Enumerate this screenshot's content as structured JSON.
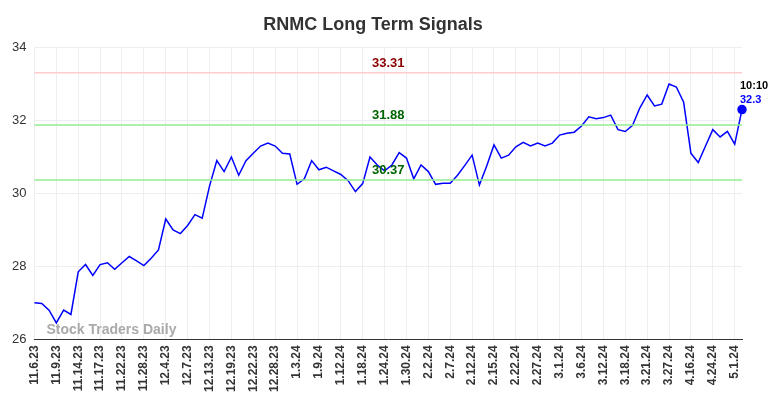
{
  "chart_data": {
    "type": "line",
    "title": "RNMC Long Term Signals",
    "categories": [
      "11.6.23",
      null,
      null,
      "11.9.23",
      null,
      null,
      "11.14.23",
      null,
      null,
      "11.17.23",
      null,
      null,
      "11.22.23",
      null,
      null,
      "11.28.23",
      null,
      null,
      "12.4.23",
      null,
      null,
      "12.7.23",
      null,
      null,
      "12.13.23",
      null,
      null,
      "12.19.23",
      null,
      null,
      "12.22.23",
      null,
      null,
      "12.28.23",
      null,
      null,
      "1.3.24",
      null,
      null,
      "1.9.24",
      null,
      null,
      "1.12.24",
      null,
      null,
      "1.18.24",
      null,
      null,
      "1.24.24",
      null,
      null,
      "1.30.24",
      null,
      null,
      "2.2.24",
      null,
      null,
      "2.7.24",
      null,
      null,
      "2.12.24",
      null,
      null,
      "2.15.24",
      null,
      null,
      "2.22.24",
      null,
      null,
      "2.27.24",
      null,
      null,
      "3.1.24",
      null,
      null,
      "3.6.24",
      null,
      null,
      "3.12.24",
      null,
      null,
      "3.18.24",
      null,
      null,
      "3.21.24",
      null,
      null,
      "3.27.24",
      null,
      null,
      "4.16.24",
      null,
      null,
      "4.24.24",
      null,
      null,
      "5.1.24",
      null
    ],
    "values": [
      27.0,
      26.98,
      26.8,
      26.45,
      26.8,
      26.68,
      27.85,
      28.05,
      27.75,
      28.05,
      28.1,
      27.92,
      28.1,
      28.27,
      28.15,
      28.02,
      28.22,
      28.45,
      29.3,
      29.0,
      28.9,
      29.12,
      29.42,
      29.32,
      30.2,
      30.9,
      30.6,
      31.0,
      30.5,
      30.9,
      31.1,
      31.3,
      31.38,
      31.3,
      31.1,
      31.08,
      30.25,
      30.4,
      30.9,
      30.65,
      30.72,
      30.62,
      30.52,
      30.35,
      30.05,
      30.27,
      31.0,
      30.78,
      30.62,
      30.78,
      31.12,
      30.97,
      30.4,
      30.78,
      30.6,
      30.25,
      30.28,
      30.28,
      30.5,
      30.77,
      31.05,
      30.23,
      30.75,
      31.33,
      30.97,
      31.05,
      31.28,
      31.4,
      31.3,
      31.38,
      31.3,
      31.38,
      31.6,
      31.65,
      31.68,
      31.85,
      32.1,
      32.05,
      32.08,
      32.15,
      31.75,
      31.7,
      31.87,
      32.35,
      32.7,
      32.4,
      32.45,
      33.0,
      32.92,
      32.5,
      31.1,
      30.85,
      31.3,
      31.75,
      31.55,
      31.7,
      31.35,
      32.3
    ],
    "color": "#0000ff",
    "ylim": [
      26,
      34
    ],
    "yticks": [
      26,
      28,
      30,
      32,
      34
    ],
    "grid": true,
    "levels": [
      {
        "value": 33.31,
        "label": "33.31",
        "color": "#ffcccc",
        "text_color": "#8b0000"
      },
      {
        "value": 31.88,
        "label": "31.88",
        "color": "#90ee90",
        "text_color": "#006400"
      },
      {
        "value": 30.37,
        "label": "30.37",
        "color": "#90ee90",
        "text_color": "#006400"
      }
    ],
    "last_point": {
      "time": "10:10",
      "value_label": "32.3"
    },
    "watermark": "Stock Traders Daily"
  }
}
